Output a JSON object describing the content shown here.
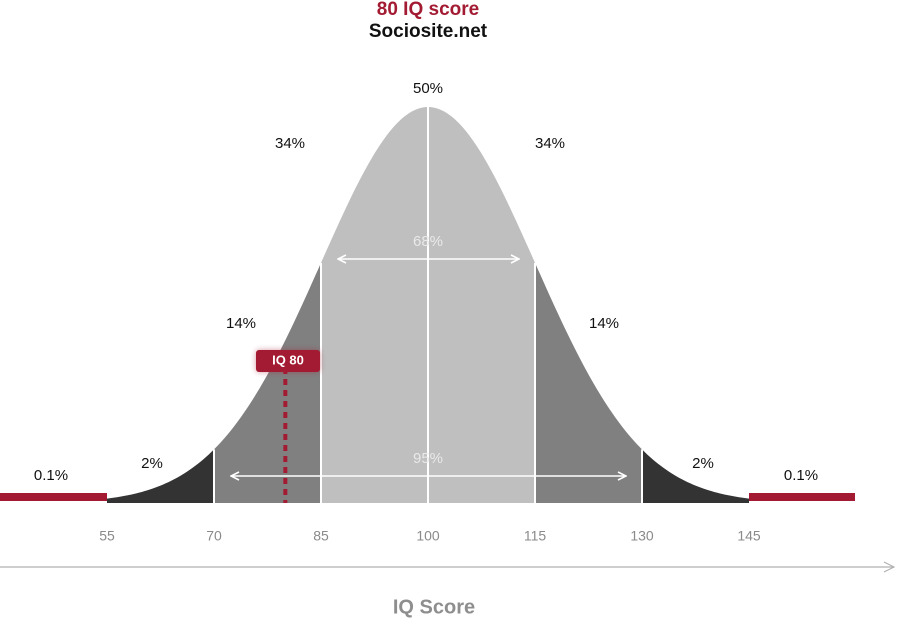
{
  "header": {
    "title": "80 IQ score",
    "subtitle": "Sociosite.net"
  },
  "chart_data": {
    "type": "area",
    "title": "80 IQ score",
    "subtitle": "Sociosite.net",
    "xlabel": "IQ Score",
    "ylabel": "",
    "mean": 100,
    "sd": 15,
    "xlim": [
      40,
      160
    ],
    "ticks": [
      55,
      70,
      85,
      100,
      115,
      130,
      145
    ],
    "tick_labels": [
      "55",
      "70",
      "85",
      "100",
      "115",
      "130",
      "145"
    ],
    "regions": [
      {
        "from": 40,
        "to": 55,
        "label": "0.1%",
        "color": "#a31b32"
      },
      {
        "from": 55,
        "to": 70,
        "label": "2%",
        "color": "#333333"
      },
      {
        "from": 70,
        "to": 85,
        "label": "14%",
        "color": "#808080"
      },
      {
        "from": 85,
        "to": 100,
        "label": "34%",
        "color": "#bfbfbf"
      },
      {
        "from": 100,
        "to": 115,
        "label": "34%",
        "color": "#bfbfbf"
      },
      {
        "from": 115,
        "to": 130,
        "label": "14%",
        "color": "#808080"
      },
      {
        "from": 130,
        "to": 145,
        "label": "2%",
        "color": "#333333"
      },
      {
        "from": 145,
        "to": 160,
        "label": "0.1%",
        "color": "#a31b32"
      }
    ],
    "peak_label": "50%",
    "ranges": [
      {
        "from": 85,
        "to": 115,
        "label": "68%"
      },
      {
        "from": 70,
        "to": 130,
        "label": "95%"
      }
    ],
    "marker": {
      "value": 80,
      "label": "IQ 80",
      "color": "#a31b32"
    },
    "grid": false,
    "legend": "none"
  }
}
